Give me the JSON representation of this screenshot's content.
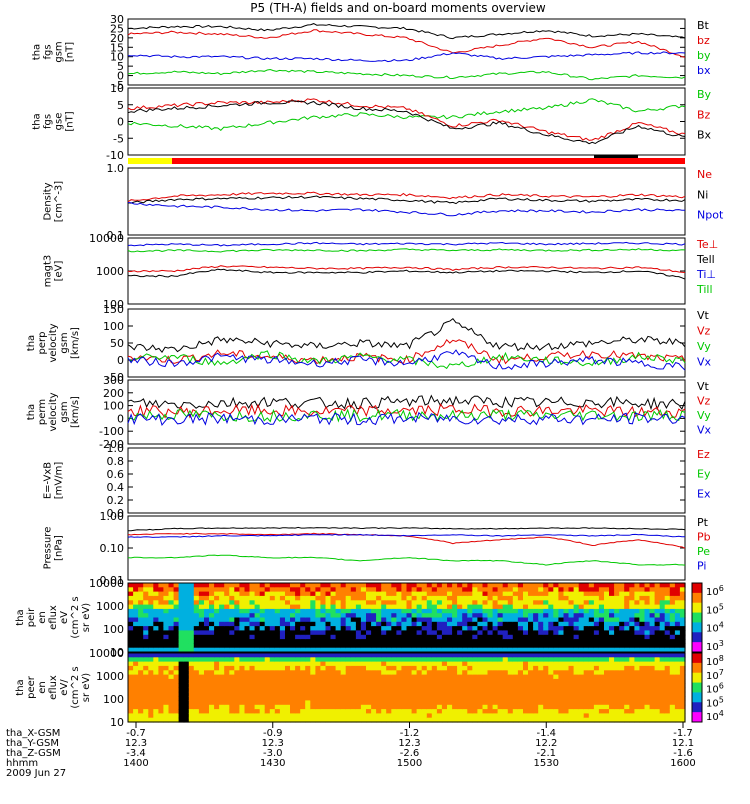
{
  "title": "P5 (TH-A) fields and on-board moments overview",
  "date": "2009 Jun 27",
  "colors": {
    "black": "#000000",
    "red": "#e00000",
    "green": "#00c800",
    "blue": "#0000e0",
    "yellow": "#ffff00",
    "brightred": "#ff0000"
  },
  "chart_data": [
    {
      "type": "line",
      "ylabel": [
        "tha",
        "fgs",
        "gsm",
        "[nT]"
      ],
      "yticks": [
        "30",
        "25",
        "20",
        "15",
        "10",
        "5",
        "0",
        "-5"
      ],
      "ylim": [
        -5,
        30
      ],
      "series": [
        {
          "name": "Bt",
          "color": "#000000",
          "levels": [
            25,
            26,
            26,
            24,
            27,
            26,
            25,
            20,
            22,
            24,
            21,
            22,
            20
          ]
        },
        {
          "name": "bz",
          "color": "#e00000",
          "levels": [
            22,
            23,
            22,
            20,
            24,
            22,
            20,
            12,
            16,
            20,
            15,
            18,
            10
          ]
        },
        {
          "name": "by",
          "color": "#00c800",
          "levels": [
            1,
            2,
            1,
            3,
            2,
            1,
            0,
            -1,
            1,
            2,
            -2,
            0,
            -1
          ]
        },
        {
          "name": "bx",
          "color": "#0000e0",
          "levels": [
            11,
            10,
            10,
            9,
            9,
            8,
            8,
            12,
            9,
            10,
            11,
            12,
            12
          ]
        }
      ]
    },
    {
      "type": "line",
      "ylabel": [
        "tha",
        "fgs",
        "gse",
        "[nT]"
      ],
      "yticks": [
        "10",
        "5",
        "0",
        "-5",
        "-10"
      ],
      "ylim": [
        -13,
        10
      ],
      "series": [
        {
          "name": "By",
          "color": "#00c800",
          "levels": [
            -2,
            -3,
            -4,
            -2,
            0,
            1,
            0,
            0,
            2,
            3,
            6,
            2,
            4
          ]
        },
        {
          "name": "Bz",
          "color": "#e00000",
          "levels": [
            3,
            4,
            5,
            5,
            6,
            4,
            3,
            -3,
            -1,
            -5,
            -8,
            -2,
            -6
          ]
        },
        {
          "name": "Bx",
          "color": "#000000",
          "levels": [
            2,
            3,
            4,
            5,
            5,
            3,
            2,
            -4,
            -2,
            -6,
            -9,
            -3,
            -7
          ]
        }
      ]
    },
    {
      "type": "line",
      "scale": "log",
      "ylabel": [
        "Density",
        "[cm^-3]"
      ],
      "yticks": [
        "1.0",
        "0.1"
      ],
      "ylim": [
        0.1,
        1.0
      ],
      "series": [
        {
          "name": "Ne",
          "color": "#e00000",
          "levels": [
            0.32,
            0.38,
            0.4,
            0.42,
            0.42,
            0.4,
            0.4,
            0.36,
            0.4,
            0.38,
            0.37,
            0.4,
            0.37
          ]
        },
        {
          "name": "Ni",
          "color": "#000000",
          "levels": [
            0.3,
            0.34,
            0.35,
            0.36,
            0.37,
            0.35,
            0.33,
            0.3,
            0.35,
            0.33,
            0.32,
            0.34,
            0.33
          ]
        },
        {
          "name": "Npot",
          "color": "#0000e0",
          "levels": [
            0.3,
            0.27,
            0.26,
            0.24,
            0.23,
            0.24,
            0.22,
            0.2,
            0.23,
            0.23,
            0.22,
            0.24,
            0.23
          ]
        }
      ]
    },
    {
      "type": "line",
      "scale": "log",
      "ylabel": [
        "magt3",
        "[eV]"
      ],
      "yticks": [
        "10000",
        "1000",
        "100"
      ],
      "ylim": [
        100,
        10000
      ],
      "series": [
        {
          "name": "Te⊥",
          "color": "#e00000",
          "levels": [
            1000,
            1000,
            1400,
            1300,
            1200,
            1200,
            1300,
            1100,
            1300,
            1300,
            1200,
            1300,
            900
          ]
        },
        {
          "name": "Tell",
          "color": "#000000",
          "levels": [
            700,
            700,
            1100,
            900,
            900,
            900,
            1000,
            900,
            1000,
            1000,
            900,
            1000,
            600
          ]
        },
        {
          "name": "Ti⊥",
          "color": "#0000e0",
          "levels": [
            6000,
            6500,
            6000,
            6500,
            7000,
            6500,
            6800,
            6500,
            7000,
            6500,
            6800,
            7000,
            6500
          ]
        },
        {
          "name": "Till",
          "color": "#00c800",
          "levels": [
            4000,
            4200,
            4000,
            4300,
            4300,
            4100,
            4500,
            4200,
            4400,
            4200,
            4300,
            4500,
            4200
          ]
        }
      ]
    },
    {
      "type": "line",
      "ylabel": [
        "tha",
        "perp",
        "velocity",
        "gsm",
        "[km/s]"
      ],
      "yticks": [
        "150",
        "100",
        "50",
        "0",
        "-50"
      ],
      "ylim": [
        -50,
        150
      ],
      "series": [
        {
          "name": "Vt",
          "color": "#000000",
          "levels": [
            40,
            30,
            60,
            50,
            40,
            50,
            40,
            110,
            40,
            40,
            50,
            60,
            50
          ]
        },
        {
          "name": "Vz",
          "color": "#e00000",
          "levels": [
            10,
            0,
            20,
            10,
            0,
            10,
            0,
            60,
            0,
            10,
            20,
            10,
            0
          ]
        },
        {
          "name": "Vy",
          "color": "#00c800",
          "levels": [
            5,
            10,
            -10,
            20,
            -5,
            10,
            0,
            -20,
            10,
            0,
            -10,
            10,
            0
          ]
        },
        {
          "name": "Vx",
          "color": "#0000e0",
          "levels": [
            0,
            -10,
            10,
            0,
            -10,
            0,
            -10,
            20,
            -20,
            -10,
            0,
            -10,
            -20
          ]
        }
      ]
    },
    {
      "type": "line",
      "ylabel": [
        "tha",
        "perm",
        "velocity",
        "gsm",
        "[km/s]"
      ],
      "yticks": [
        "300",
        "200",
        "100",
        "0",
        "-100",
        "-200"
      ],
      "ylim": [
        -200,
        300
      ],
      "series": [
        {
          "name": "Vt",
          "color": "#000000",
          "levels": [
            120,
            110,
            120,
            130,
            120,
            120,
            130,
            140,
            130,
            120,
            130,
            120,
            110
          ]
        },
        {
          "name": "Vz",
          "color": "#e00000",
          "levels": [
            60,
            50,
            60,
            60,
            50,
            60,
            60,
            70,
            60,
            60,
            60,
            50,
            50
          ]
        },
        {
          "name": "Vy",
          "color": "#00c800",
          "levels": [
            20,
            30,
            20,
            20,
            30,
            20,
            30,
            20,
            30,
            20,
            30,
            20,
            30
          ]
        },
        {
          "name": "Vx",
          "color": "#0000e0",
          "levels": [
            0,
            -10,
            0,
            -10,
            0,
            -10,
            0,
            0,
            -10,
            0,
            -10,
            0,
            0
          ]
        }
      ]
    },
    {
      "type": "line",
      "ylabel": [
        "E=-VxB",
        "[mV/m]"
      ],
      "yticks": [
        "1.0",
        "0.8",
        "0.6",
        "0.4",
        "0.2",
        "0.0"
      ],
      "ylim": [
        0,
        1
      ],
      "series": [
        {
          "name": "Ez",
          "color": "#e00000",
          "levels": []
        },
        {
          "name": "Ey",
          "color": "#00c800",
          "levels": []
        },
        {
          "name": "Ex",
          "color": "#0000e0",
          "levels": []
        }
      ]
    },
    {
      "type": "line",
      "scale": "log",
      "ylabel": [
        "Pressure",
        "[nPa]"
      ],
      "yticks": [
        "1.00",
        "0.10",
        "0.01"
      ],
      "ylim": [
        0.01,
        1.0
      ],
      "series": [
        {
          "name": "Pt",
          "color": "#000000",
          "levels": [
            0.35,
            0.4,
            0.42,
            0.42,
            0.43,
            0.42,
            0.42,
            0.4,
            0.4,
            0.42,
            0.42,
            0.4,
            0.38
          ]
        },
        {
          "name": "Pb",
          "color": "#e00000",
          "levels": [
            0.26,
            0.28,
            0.28,
            0.26,
            0.28,
            0.26,
            0.24,
            0.14,
            0.18,
            0.22,
            0.12,
            0.18,
            0.1
          ]
        },
        {
          "name": "Pe",
          "color": "#00c800",
          "levels": [
            0.05,
            0.05,
            0.06,
            0.05,
            0.05,
            0.04,
            0.05,
            0.04,
            0.04,
            0.03,
            0.04,
            0.03,
            0.03
          ]
        },
        {
          "name": "Pi",
          "color": "#0000e0",
          "levels": [
            0.22,
            0.22,
            0.24,
            0.24,
            0.26,
            0.26,
            0.24,
            0.26,
            0.24,
            0.26,
            0.24,
            0.26,
            0.22
          ]
        }
      ]
    },
    {
      "type": "heatmap",
      "ylabel": [
        "tha",
        "peir",
        "en",
        "eflux",
        "eV",
        "(cm^2 s",
        "sr eV)"
      ],
      "yticks": [
        "10000",
        "1000",
        "100",
        "10"
      ],
      "colorbar": [
        "10^6",
        "10^5",
        "10^4",
        "10^3"
      ]
    },
    {
      "type": "heatmap",
      "ylabel": [
        "tha",
        "peer",
        "en",
        "eflux",
        "eV/",
        "(cm^2 s",
        "sr eV)"
      ],
      "yticks": [
        "10000",
        "1000",
        "100",
        "10"
      ],
      "colorbar": [
        "10^8",
        "10^7",
        "10^6",
        "10^5",
        "10^4"
      ]
    }
  ],
  "x_axis": {
    "labels": [
      "tha_X-GSM",
      "tha_Y-GSM",
      "tha_Z-GSM",
      "hhmm"
    ],
    "ticks": [
      {
        "x": [
          "-0.7",
          "12.3",
          "-3.4",
          "1400"
        ]
      },
      {
        "x": [
          "-0.9",
          "12.3",
          "-3.0",
          "1430"
        ]
      },
      {
        "x": [
          "-1.2",
          "12.3",
          "-2.6",
          "1500"
        ]
      },
      {
        "x": [
          "-1.4",
          "12.2",
          "-2.1",
          "1530"
        ]
      },
      {
        "x": [
          "-1.7",
          "12.1",
          "-1.6",
          "1600"
        ]
      }
    ]
  }
}
